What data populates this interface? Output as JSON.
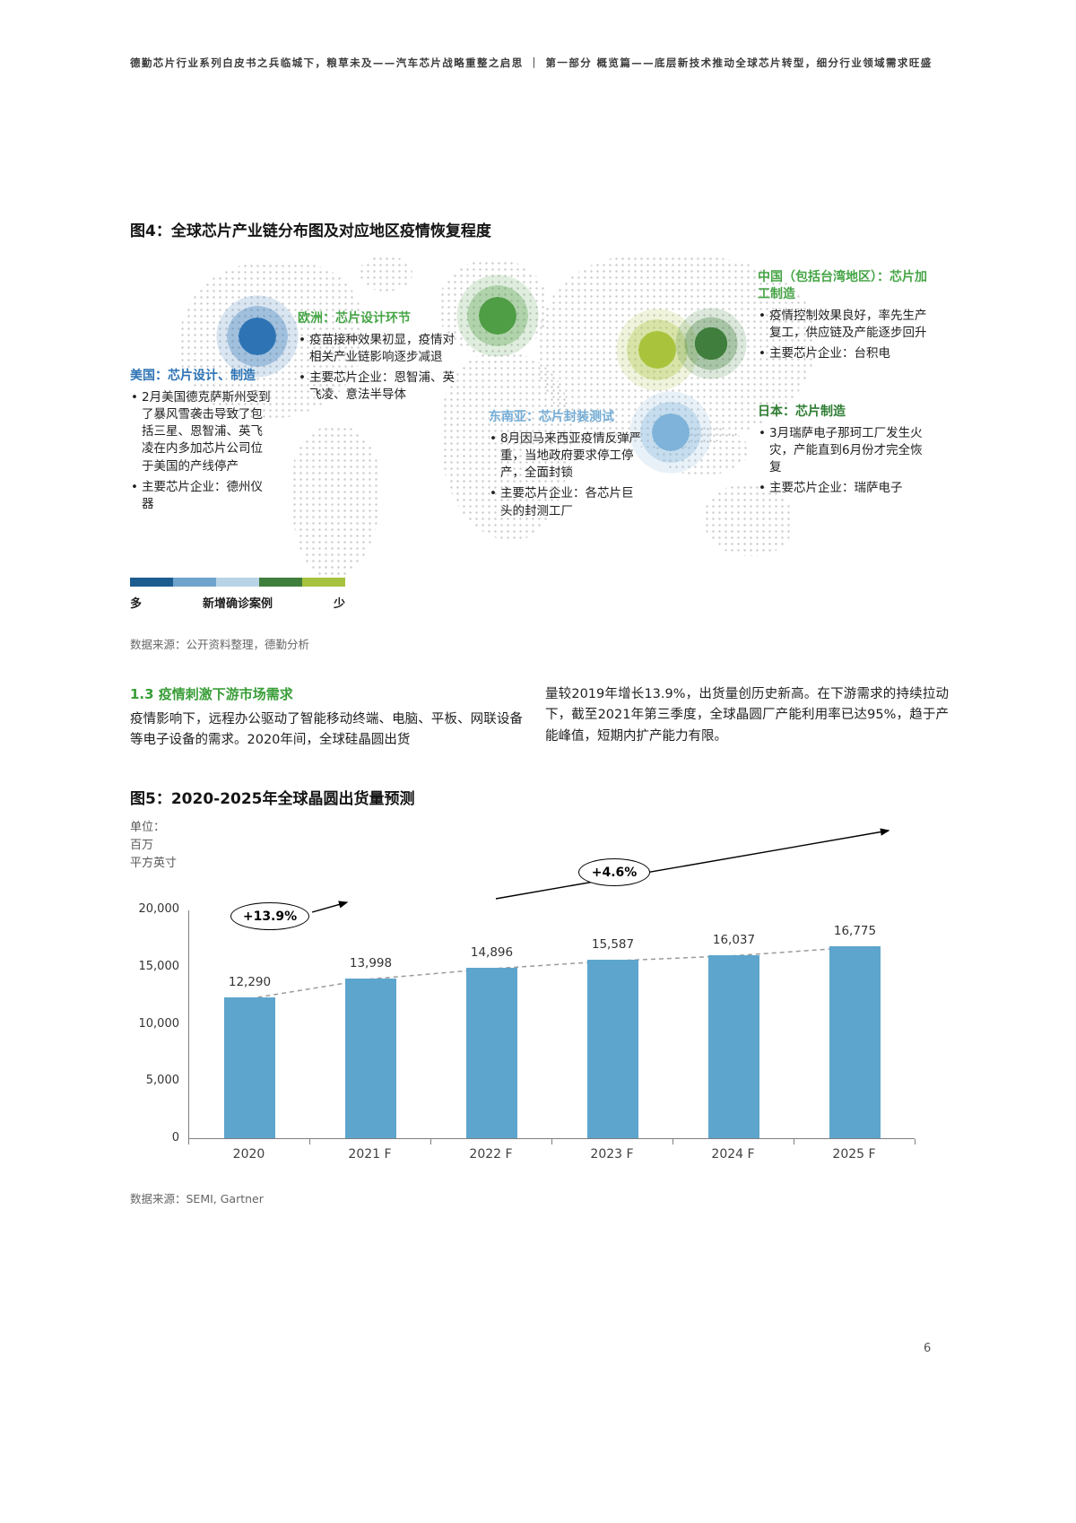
{
  "header": {
    "left": "德勤芯片行业系列白皮书之兵临城下，粮草未及——汽车芯片战略重整之启思",
    "divider": "｜",
    "right": "第一部分 概览篇——底层新技术推动全球芯片转型，细分行业领域需求旺盛"
  },
  "figure4": {
    "title": "图4：全球芯片产业链分布图及对应地区疫情恢复程度",
    "regions": {
      "us": {
        "heading": "美国：芯片设计、制造",
        "heading_color": "#2e74b5",
        "marker_color": "#2e74b5",
        "bullets": [
          "2月美国德克萨斯州受到了暴风雪袭击导致了包括三星、恩智浦、英飞凌在内多加芯片公司位于美国的产线停产",
          "主要芯片企业：德州仪器"
        ]
      },
      "europe": {
        "heading": "欧洲：芯片设计环节",
        "heading_color": "#46a546",
        "marker_color": "#4f9d45",
        "bullets": [
          "疫苗接种效果初显，疫情对相关产业链影响逐步减退",
          "主要芯片企业：恩智浦、英飞凌、意法半导体"
        ]
      },
      "sea": {
        "heading": "东南亚：芯片封装测试",
        "heading_color": "#74add6",
        "marker_color": "#7fb3d9",
        "bullets": [
          "8月因马来西亚疫情反弹严重，当地政府要求停工停产，全面封锁",
          "主要芯片企业：各芯片巨头的封测工厂"
        ]
      },
      "china": {
        "heading": "中国（包括台湾地区）：芯片加工制造",
        "heading_color": "#46a546",
        "marker_color": "#a9c43c",
        "bullets": [
          "疫情控制效果良好，率先生产复工，供应链及产能逐步回升",
          "主要芯片企业：台积电"
        ]
      },
      "japan": {
        "heading": "日本：芯片制造",
        "heading_color": "#2e7d32",
        "marker_color": "#3f7e3c",
        "bullets": [
          "3月瑞萨电子那珂工厂发生火灾，产能直到6月份才完全恢复",
          "主要芯片企业：瑞萨电子"
        ]
      }
    },
    "legend": {
      "label_left": "多",
      "label_center": "新增确诊案例",
      "label_right": "少",
      "colors": [
        "#1d5c8f",
        "#6fa3cc",
        "#b9d3e6",
        "#3f7e3c",
        "#a6c23e"
      ]
    },
    "source": "数据来源：公开资料整理，德勤分析"
  },
  "section13": {
    "heading": "1.3 疫情刺激下游市场需求",
    "col_left": "疫情影响下，远程办公驱动了智能移动终端、电脑、平板、网联设备等电子设备的需求。2020年间，全球硅晶圆出货",
    "col_right": "量较2019年增长13.9%，出货量创历史新高。在下游需求的持续拉动下，截至2021年第三季度，全球晶圆厂产能利用率已达95%，趋于产能峰值，短期内扩产能力有限。"
  },
  "figure5": {
    "title": "图5：2020-2025年全球晶圆出货量预测",
    "unit_lines": [
      "单位：",
      "百万",
      "平方英寸"
    ],
    "source": "数据来源：SEMI, Gartner"
  },
  "chart_data": {
    "type": "bar",
    "title": "图5：2020-2025年全球晶圆出货量预测",
    "unit": "单位：百万平方英寸",
    "categories": [
      "2020",
      "2021 F",
      "2022 F",
      "2023 F",
      "2024 F",
      "2025 F"
    ],
    "values": [
      12290,
      13998,
      14896,
      15587,
      16037,
      16775
    ],
    "value_labels": [
      "12,290",
      "13,998",
      "14,896",
      "15,587",
      "16,037",
      "16,775"
    ],
    "ylim": [
      0,
      20000
    ],
    "ytick_labels": [
      "20,000",
      "15,000",
      "10,000",
      "5,000",
      "0"
    ],
    "annotations": [
      {
        "text": "+13.9%"
      },
      {
        "text": "+4.6%"
      }
    ],
    "bar_color": "#5da5cd",
    "trend_line": "dashed",
    "grid": "off",
    "legend": "none"
  },
  "page_number": "6"
}
